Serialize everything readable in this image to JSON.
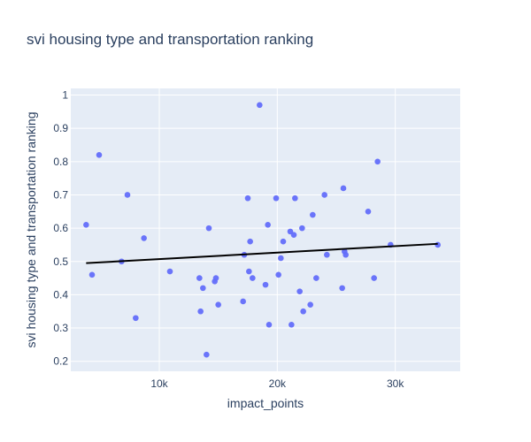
{
  "chart_data": {
    "type": "scatter",
    "title": "svi housing type and transportation ranking",
    "xlabel": "impact_points",
    "ylabel": "svi housing type and transportation ranking",
    "xlim": [
      2500,
      35500
    ],
    "ylim": [
      0.17,
      1.02
    ],
    "x_ticks": [
      10000,
      20000,
      30000
    ],
    "x_tick_labels": [
      "10k",
      "20k",
      "30k"
    ],
    "y_ticks": [
      0.2,
      0.3,
      0.4,
      0.5,
      0.6,
      0.7,
      0.8,
      0.9,
      1
    ],
    "y_tick_labels": [
      "0.2",
      "0.3",
      "0.4",
      "0.5",
      "0.6",
      "0.7",
      "0.8",
      "0.9",
      "1"
    ],
    "grid": true,
    "colors": {
      "background": "#E5ECF6",
      "points": "#636efa",
      "trendline": "#000000"
    },
    "trendline": {
      "x": [
        3800,
        33600
      ],
      "y": [
        0.495,
        0.553
      ]
    },
    "points": [
      {
        "x": 3800,
        "y": 0.61
      },
      {
        "x": 4300,
        "y": 0.46
      },
      {
        "x": 4900,
        "y": 0.82
      },
      {
        "x": 6800,
        "y": 0.5
      },
      {
        "x": 7300,
        "y": 0.7
      },
      {
        "x": 8000,
        "y": 0.33
      },
      {
        "x": 8700,
        "y": 0.57
      },
      {
        "x": 10900,
        "y": 0.47
      },
      {
        "x": 13400,
        "y": 0.45
      },
      {
        "x": 13500,
        "y": 0.35
      },
      {
        "x": 13700,
        "y": 0.42
      },
      {
        "x": 14000,
        "y": 0.22
      },
      {
        "x": 14200,
        "y": 0.6
      },
      {
        "x": 14700,
        "y": 0.44
      },
      {
        "x": 14800,
        "y": 0.45
      },
      {
        "x": 15000,
        "y": 0.37
      },
      {
        "x": 17100,
        "y": 0.38
      },
      {
        "x": 17200,
        "y": 0.52
      },
      {
        "x": 17500,
        "y": 0.69
      },
      {
        "x": 17600,
        "y": 0.47
      },
      {
        "x": 17700,
        "y": 0.56
      },
      {
        "x": 17900,
        "y": 0.45
      },
      {
        "x": 18500,
        "y": 0.97
      },
      {
        "x": 19000,
        "y": 0.43
      },
      {
        "x": 19200,
        "y": 0.61
      },
      {
        "x": 19300,
        "y": 0.31
      },
      {
        "x": 19900,
        "y": 0.69
      },
      {
        "x": 20100,
        "y": 0.46
      },
      {
        "x": 20300,
        "y": 0.51
      },
      {
        "x": 20500,
        "y": 0.56
      },
      {
        "x": 21100,
        "y": 0.59
      },
      {
        "x": 21200,
        "y": 0.31
      },
      {
        "x": 21400,
        "y": 0.58
      },
      {
        "x": 21500,
        "y": 0.69
      },
      {
        "x": 21900,
        "y": 0.41
      },
      {
        "x": 22100,
        "y": 0.6
      },
      {
        "x": 22200,
        "y": 0.35
      },
      {
        "x": 22800,
        "y": 0.37
      },
      {
        "x": 23000,
        "y": 0.64
      },
      {
        "x": 23300,
        "y": 0.45
      },
      {
        "x": 24000,
        "y": 0.7
      },
      {
        "x": 24200,
        "y": 0.52
      },
      {
        "x": 25500,
        "y": 0.42
      },
      {
        "x": 25600,
        "y": 0.72
      },
      {
        "x": 25700,
        "y": 0.53
      },
      {
        "x": 25800,
        "y": 0.52
      },
      {
        "x": 27700,
        "y": 0.65
      },
      {
        "x": 28200,
        "y": 0.45
      },
      {
        "x": 28500,
        "y": 0.8
      },
      {
        "x": 29600,
        "y": 0.55
      },
      {
        "x": 33600,
        "y": 0.55
      }
    ]
  }
}
